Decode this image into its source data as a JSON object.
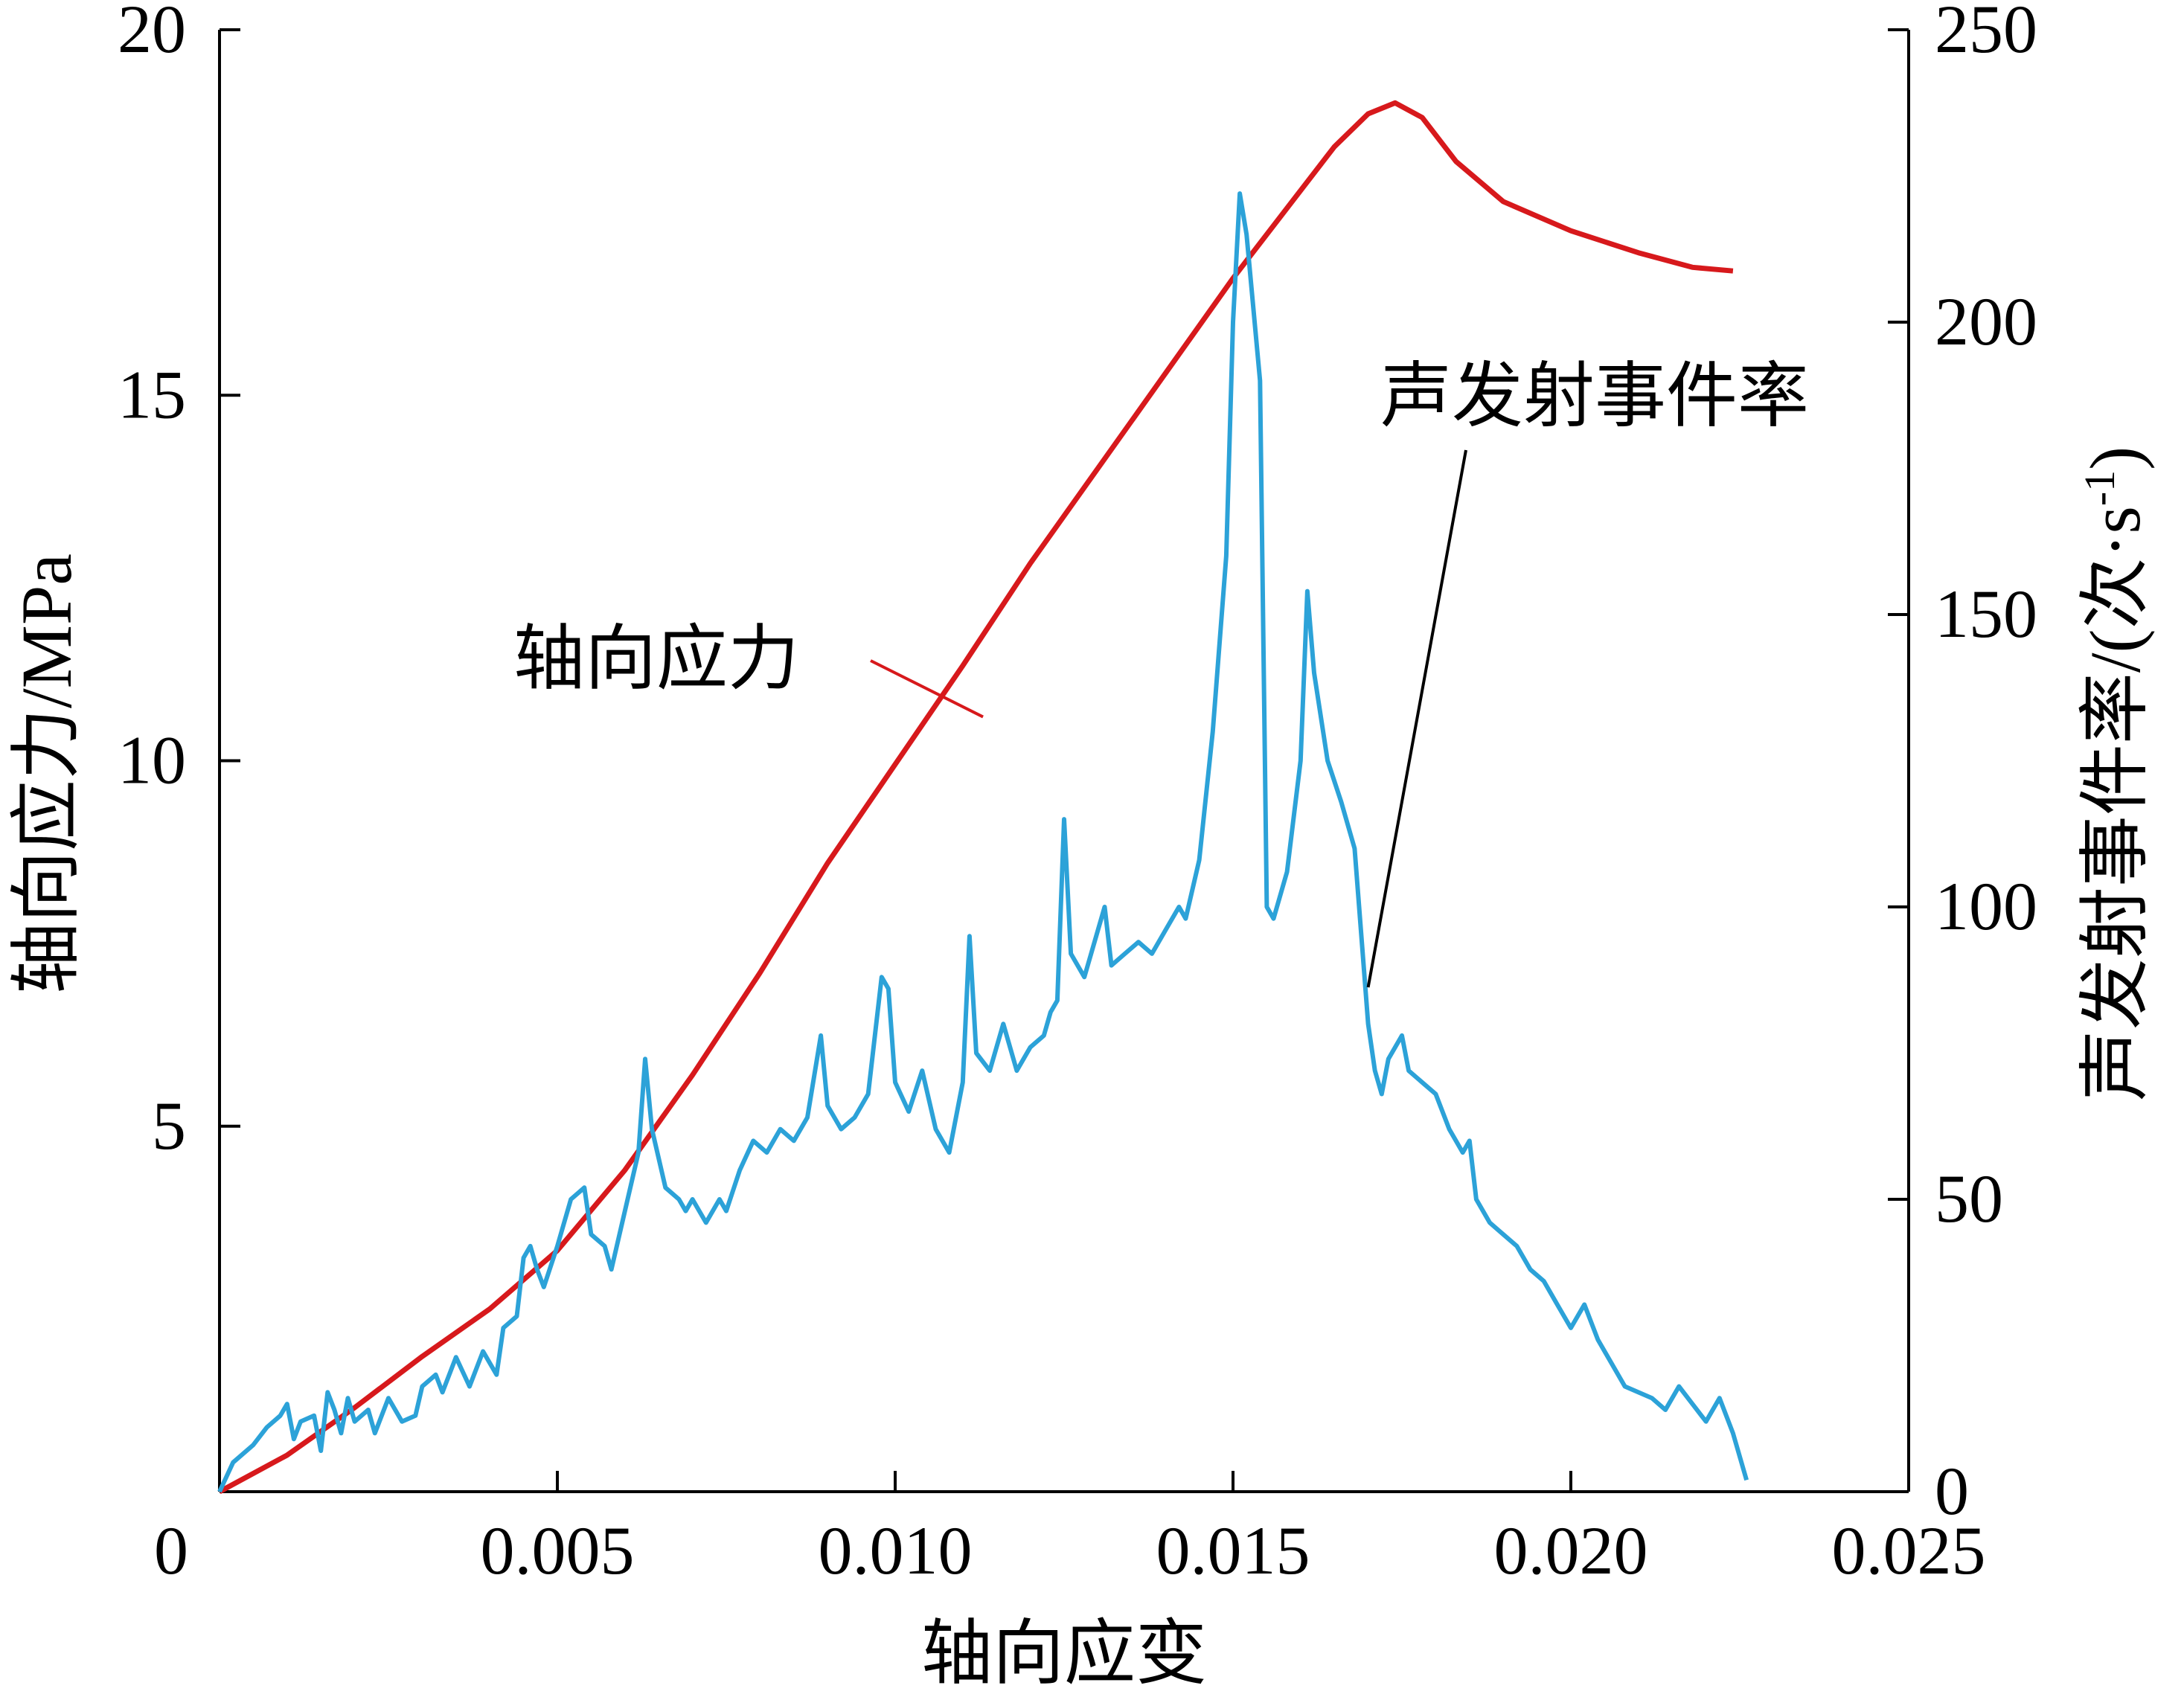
{
  "colors": {
    "stress": "#d7191c",
    "ae": "#2ca2d8",
    "axis": "#000000"
  },
  "chart_data": {
    "type": "line",
    "xlabel": "轴向应变",
    "ylabel_left": "轴向应力/MPa",
    "ylabel_right_main": "声发射事件率/(次·s",
    "ylabel_right_sup": "-1",
    "ylabel_right_close": ")",
    "xlim": [
      0,
      0.025
    ],
    "ylim_left": [
      0,
      20
    ],
    "ylim_right": [
      0,
      250
    ],
    "x_ticks": [
      0.005,
      0.01,
      0.015,
      0.02,
      0.025
    ],
    "x_tick_labels": [
      "0.005",
      "0.010",
      "0.015",
      "0.020",
      "0.025"
    ],
    "x_origin_label": "0",
    "y_left_ticks": [
      5,
      10,
      15,
      20
    ],
    "y_left_tick_labels": [
      "5",
      "10",
      "15",
      "20"
    ],
    "y_right_ticks": [
      0,
      50,
      100,
      150,
      200,
      250
    ],
    "y_right_tick_labels": [
      "0",
      "50",
      "100",
      "150",
      "200",
      "250"
    ],
    "grid": false,
    "annotations": [
      {
        "text": "轴向应力",
        "series": 0,
        "target": [
          0.0113,
          10.6
        ]
      },
      {
        "text": "声发射事件率",
        "series": 1,
        "target": [
          0.017,
          6.9
        ]
      }
    ],
    "series": [
      {
        "axis": "left",
        "points": [
          [
            0.0,
            0.0
          ],
          [
            0.001,
            0.5
          ],
          [
            0.002,
            1.15
          ],
          [
            0.003,
            1.85
          ],
          [
            0.004,
            2.5
          ],
          [
            0.005,
            3.3
          ],
          [
            0.006,
            4.4
          ],
          [
            0.007,
            5.7
          ],
          [
            0.008,
            7.1
          ],
          [
            0.009,
            8.6
          ],
          [
            0.01,
            9.95
          ],
          [
            0.011,
            11.3
          ],
          [
            0.012,
            12.7
          ],
          [
            0.013,
            14.0
          ],
          [
            0.014,
            15.3
          ],
          [
            0.015,
            16.6
          ],
          [
            0.016,
            17.8
          ],
          [
            0.0165,
            18.4
          ],
          [
            0.017,
            18.85
          ],
          [
            0.0174,
            19.0
          ],
          [
            0.0178,
            18.8
          ],
          [
            0.0183,
            18.2
          ],
          [
            0.019,
            17.65
          ],
          [
            0.02,
            17.25
          ],
          [
            0.021,
            16.95
          ],
          [
            0.0218,
            16.75
          ],
          [
            0.0224,
            16.7
          ]
        ]
      },
      {
        "axis": "right",
        "points": [
          [
            0.0,
            0
          ],
          [
            0.0002,
            5
          ],
          [
            0.0005,
            8
          ],
          [
            0.0007,
            11
          ],
          [
            0.0009,
            13
          ],
          [
            0.001,
            15
          ],
          [
            0.0011,
            9
          ],
          [
            0.0012,
            12
          ],
          [
            0.0014,
            13
          ],
          [
            0.0015,
            7
          ],
          [
            0.0016,
            17
          ],
          [
            0.0017,
            14
          ],
          [
            0.0018,
            10
          ],
          [
            0.0019,
            16
          ],
          [
            0.002,
            12
          ],
          [
            0.0022,
            14
          ],
          [
            0.0023,
            10
          ],
          [
            0.0025,
            16
          ],
          [
            0.0027,
            12
          ],
          [
            0.0029,
            13
          ],
          [
            0.003,
            18
          ],
          [
            0.0032,
            20
          ],
          [
            0.0033,
            17
          ],
          [
            0.0035,
            23
          ],
          [
            0.0037,
            18
          ],
          [
            0.0039,
            24
          ],
          [
            0.0041,
            20
          ],
          [
            0.0042,
            28
          ],
          [
            0.0044,
            30
          ],
          [
            0.0045,
            40
          ],
          [
            0.0046,
            42
          ],
          [
            0.0047,
            38
          ],
          [
            0.0048,
            35
          ],
          [
            0.005,
            42
          ],
          [
            0.0052,
            50
          ],
          [
            0.0054,
            52
          ],
          [
            0.0055,
            44
          ],
          [
            0.0057,
            42
          ],
          [
            0.0058,
            38
          ],
          [
            0.006,
            48
          ],
          [
            0.0062,
            58
          ],
          [
            0.0063,
            74
          ],
          [
            0.0064,
            62
          ],
          [
            0.0066,
            52
          ],
          [
            0.0068,
            50
          ],
          [
            0.0069,
            48
          ],
          [
            0.007,
            50
          ],
          [
            0.0072,
            46
          ],
          [
            0.0074,
            50
          ],
          [
            0.0075,
            48
          ],
          [
            0.0077,
            55
          ],
          [
            0.0079,
            60
          ],
          [
            0.0081,
            58
          ],
          [
            0.0083,
            62
          ],
          [
            0.0085,
            60
          ],
          [
            0.0087,
            64
          ],
          [
            0.0089,
            78
          ],
          [
            0.009,
            66
          ],
          [
            0.0092,
            62
          ],
          [
            0.0094,
            64
          ],
          [
            0.0096,
            68
          ],
          [
            0.0098,
            88
          ],
          [
            0.0099,
            86
          ],
          [
            0.01,
            70
          ],
          [
            0.0102,
            65
          ],
          [
            0.0104,
            72
          ],
          [
            0.0106,
            62
          ],
          [
            0.0108,
            58
          ],
          [
            0.011,
            70
          ],
          [
            0.0111,
            95
          ],
          [
            0.0112,
            75
          ],
          [
            0.0114,
            72
          ],
          [
            0.0116,
            80
          ],
          [
            0.0118,
            72
          ],
          [
            0.012,
            76
          ],
          [
            0.0122,
            78
          ],
          [
            0.0123,
            82
          ],
          [
            0.0124,
            84
          ],
          [
            0.0125,
            115
          ],
          [
            0.0126,
            92
          ],
          [
            0.0128,
            88
          ],
          [
            0.0129,
            92
          ],
          [
            0.0131,
            100
          ],
          [
            0.0132,
            90
          ],
          [
            0.0134,
            92
          ],
          [
            0.0136,
            94
          ],
          [
            0.0138,
            92
          ],
          [
            0.014,
            96
          ],
          [
            0.0142,
            100
          ],
          [
            0.0143,
            98
          ],
          [
            0.0145,
            108
          ],
          [
            0.0147,
            130
          ],
          [
            0.0149,
            160
          ],
          [
            0.015,
            200
          ],
          [
            0.0151,
            222
          ],
          [
            0.0152,
            215
          ],
          [
            0.0154,
            190
          ],
          [
            0.0155,
            100
          ],
          [
            0.0156,
            98
          ],
          [
            0.0158,
            106
          ],
          [
            0.016,
            125
          ],
          [
            0.0161,
            154
          ],
          [
            0.0162,
            140
          ],
          [
            0.0164,
            125
          ],
          [
            0.0166,
            118
          ],
          [
            0.0168,
            110
          ],
          [
            0.017,
            80
          ],
          [
            0.0171,
            72
          ],
          [
            0.0172,
            68
          ],
          [
            0.0173,
            74
          ],
          [
            0.0175,
            78
          ],
          [
            0.0176,
            72
          ],
          [
            0.0178,
            70
          ],
          [
            0.018,
            68
          ],
          [
            0.0182,
            62
          ],
          [
            0.0184,
            58
          ],
          [
            0.0185,
            60
          ],
          [
            0.0186,
            50
          ],
          [
            0.0188,
            46
          ],
          [
            0.019,
            44
          ],
          [
            0.0192,
            42
          ],
          [
            0.0194,
            38
          ],
          [
            0.0196,
            36
          ],
          [
            0.0198,
            32
          ],
          [
            0.02,
            28
          ],
          [
            0.0202,
            32
          ],
          [
            0.0204,
            26
          ],
          [
            0.0206,
            22
          ],
          [
            0.0208,
            18
          ],
          [
            0.021,
            17
          ],
          [
            0.0212,
            16
          ],
          [
            0.0214,
            14
          ],
          [
            0.0216,
            18
          ],
          [
            0.0218,
            15
          ],
          [
            0.022,
            12
          ],
          [
            0.0222,
            16
          ],
          [
            0.0224,
            10
          ],
          [
            0.0226,
            2
          ]
        ]
      }
    ]
  }
}
